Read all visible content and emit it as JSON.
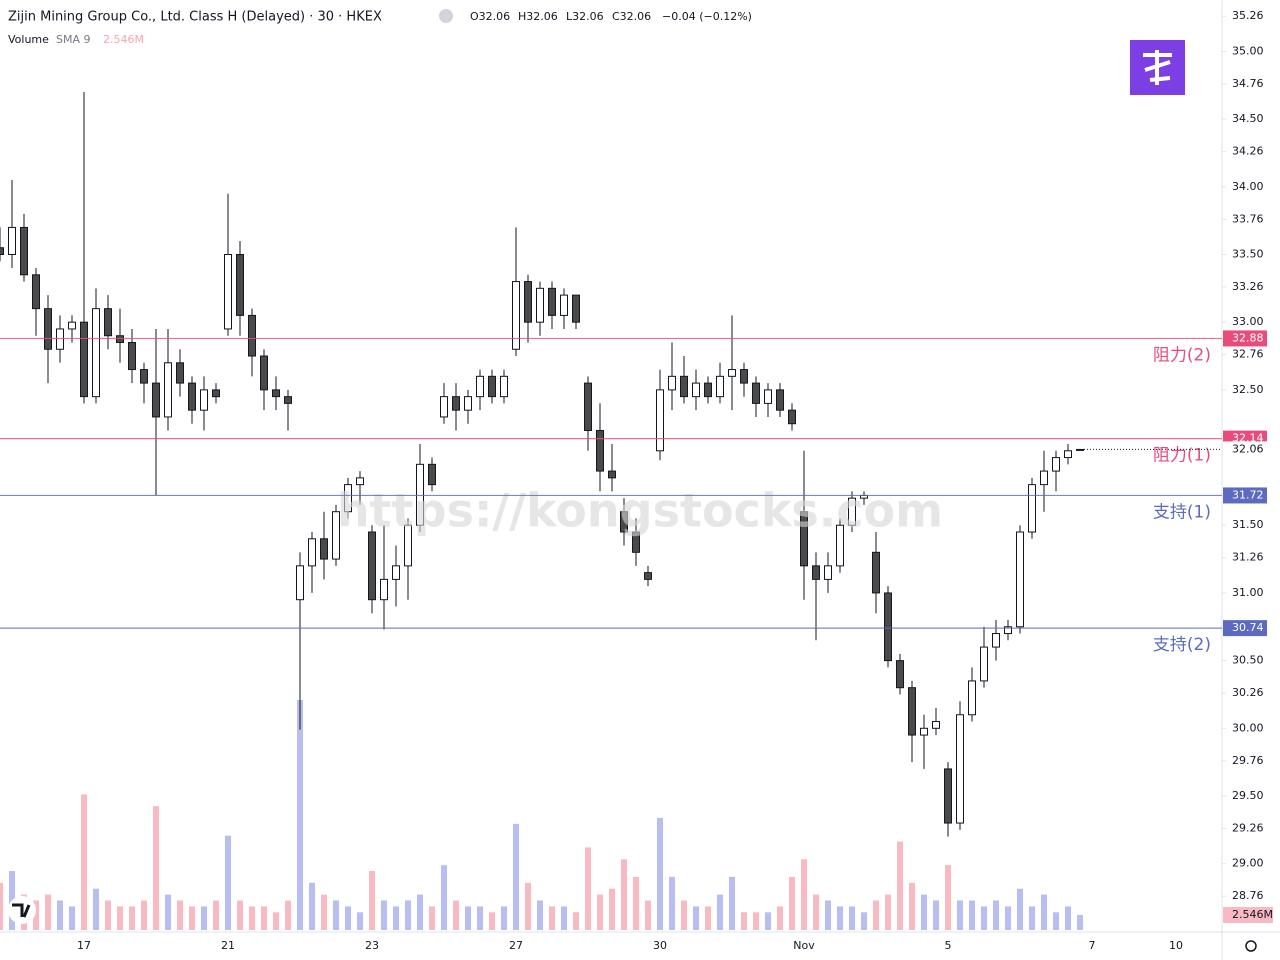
{
  "chart_data": {
    "type": "candlestick",
    "title": "Zijin Mining Group Co., Ltd. Class H (Delayed) · 30 · HKEX",
    "ohlc_text": [
      "O32.06",
      "H32.06",
      "L32.06",
      "C32.06",
      "−0.04 (−0.12%)"
    ],
    "volume_title": "Volume",
    "volume_sma": "SMA 9",
    "watermark": "https://kongstocks.com",
    "categories": [
      null,
      null,
      null,
      null,
      null,
      null,
      null,
      "17",
      null,
      null,
      null,
      null,
      null,
      null,
      null,
      null,
      null,
      null,
      null,
      "21",
      null,
      null,
      null,
      null,
      null,
      null,
      null,
      null,
      null,
      null,
      null,
      "23",
      null,
      null,
      null,
      null,
      null,
      null,
      null,
      null,
      null,
      null,
      null,
      "27",
      null,
      null,
      null,
      null,
      null,
      null,
      null,
      null,
      null,
      null,
      null,
      "30",
      null,
      null,
      null,
      null,
      null,
      null,
      null,
      null,
      null,
      null,
      null,
      "Nov",
      null,
      null,
      null,
      null,
      null,
      null,
      null,
      null,
      null,
      null,
      null,
      "5",
      null,
      null,
      null,
      null,
      null,
      null,
      null,
      null,
      null,
      null,
      null,
      "7",
      null,
      null,
      null,
      null,
      null,
      null,
      "10"
    ],
    "open": [
      33.55,
      33.5,
      33.7,
      33.35,
      33.1,
      32.8,
      32.95,
      33.0,
      32.45,
      33.1,
      32.9,
      32.85,
      32.65,
      32.55,
      32.3,
      32.7,
      32.55,
      32.35,
      32.5,
      32.95,
      33.5,
      33.05,
      32.75,
      32.5,
      32.45,
      30.95,
      31.2,
      31.4,
      31.25,
      31.6,
      31.8,
      31.45,
      30.95,
      31.1,
      31.2,
      31.5,
      31.95,
      32.3,
      32.45,
      32.35,
      32.45,
      32.6,
      32.45,
      32.8,
      33.3,
      33.0,
      33.25,
      33.05,
      33.2,
      32.55,
      32.2,
      31.9,
      31.6,
      31.45,
      31.15,
      32.05,
      32.5,
      32.6,
      32.45,
      32.55,
      32.45,
      32.6,
      32.65,
      32.55,
      32.4,
      32.5,
      32.35,
      31.6,
      31.2,
      31.1,
      31.2,
      31.5,
      31.7,
      31.3,
      31.0,
      30.5,
      30.3,
      29.95,
      30.0,
      29.7,
      29.3,
      30.1,
      30.35,
      30.6,
      30.7,
      30.75,
      31.45,
      31.8,
      31.9,
      32.0,
      32.06,
      null,
      null,
      null,
      null,
      null,
      null,
      null,
      null
    ],
    "high": [
      33.7,
      34.05,
      33.8,
      33.4,
      33.2,
      33.05,
      33.05,
      34.7,
      33.25,
      33.2,
      33.1,
      32.95,
      32.7,
      32.95,
      32.95,
      32.8,
      32.6,
      32.6,
      32.55,
      33.95,
      33.6,
      33.1,
      32.8,
      32.6,
      32.5,
      31.3,
      31.45,
      31.6,
      31.65,
      31.85,
      31.9,
      31.5,
      31.5,
      31.35,
      31.55,
      32.1,
      32.0,
      32.55,
      32.55,
      32.5,
      32.65,
      32.65,
      32.65,
      33.7,
      33.35,
      33.3,
      33.3,
      33.25,
      33.2,
      32.6,
      32.4,
      32.1,
      31.7,
      31.55,
      31.2,
      32.65,
      32.85,
      32.75,
      32.65,
      32.6,
      32.7,
      33.05,
      32.7,
      32.6,
      32.55,
      32.55,
      32.4,
      32.05,
      31.3,
      31.3,
      31.55,
      31.75,
      31.75,
      31.45,
      31.05,
      30.55,
      30.35,
      30.1,
      30.15,
      29.75,
      30.2,
      30.45,
      30.75,
      30.8,
      30.8,
      31.5,
      31.85,
      32.05,
      32.05,
      32.1,
      32.06,
      null,
      null,
      null,
      null,
      null,
      null,
      null,
      null
    ],
    "low": [
      33.45,
      33.4,
      33.3,
      32.9,
      32.55,
      32.7,
      32.85,
      32.4,
      32.4,
      32.8,
      32.7,
      32.55,
      32.4,
      31.72,
      32.2,
      32.45,
      32.25,
      32.2,
      32.4,
      32.9,
      32.9,
      32.6,
      32.35,
      32.35,
      32.2,
      29.99,
      31.0,
      31.1,
      31.2,
      31.55,
      31.65,
      30.85,
      30.73,
      30.9,
      30.95,
      31.45,
      31.75,
      32.25,
      32.2,
      32.25,
      32.35,
      32.4,
      32.4,
      32.75,
      32.85,
      32.9,
      32.95,
      32.95,
      32.95,
      32.05,
      31.75,
      31.75,
      31.35,
      31.2,
      31.05,
      31.98,
      32.35,
      32.4,
      32.35,
      32.4,
      32.4,
      32.35,
      32.45,
      32.3,
      32.3,
      32.3,
      32.2,
      30.95,
      30.65,
      31.0,
      31.15,
      31.45,
      31.65,
      30.85,
      30.45,
      30.25,
      29.75,
      29.7,
      29.95,
      29.2,
      29.25,
      30.05,
      30.3,
      30.5,
      30.65,
      30.7,
      31.4,
      31.6,
      31.75,
      31.95,
      32.06,
      null,
      null,
      null,
      null,
      null,
      null,
      null,
      null
    ],
    "close": [
      33.5,
      33.7,
      33.35,
      33.1,
      32.8,
      32.95,
      33.0,
      32.45,
      33.1,
      32.9,
      32.85,
      32.65,
      32.55,
      32.3,
      32.7,
      32.55,
      32.35,
      32.5,
      32.45,
      33.5,
      33.05,
      32.75,
      32.5,
      32.45,
      32.4,
      31.2,
      31.4,
      31.25,
      31.6,
      31.8,
      31.85,
      30.95,
      31.1,
      31.2,
      31.5,
      31.95,
      31.8,
      32.45,
      32.35,
      32.45,
      32.6,
      32.45,
      32.6,
      33.3,
      33.0,
      33.25,
      33.05,
      33.2,
      33.0,
      32.2,
      31.9,
      31.85,
      31.45,
      31.3,
      31.1,
      32.5,
      32.6,
      32.45,
      32.55,
      32.45,
      32.6,
      32.65,
      32.55,
      32.4,
      32.5,
      32.35,
      32.25,
      31.2,
      31.1,
      31.2,
      31.5,
      31.7,
      31.72,
      31.0,
      30.5,
      30.3,
      29.95,
      30.0,
      30.05,
      29.3,
      30.1,
      30.35,
      30.6,
      30.7,
      30.75,
      31.45,
      31.8,
      31.9,
      32.0,
      32.05,
      32.06,
      null,
      null,
      null,
      null,
      null,
      null,
      null,
      null
    ],
    "volume": [
      8,
      10,
      6,
      5,
      6,
      5,
      4,
      23,
      7,
      5,
      4,
      4,
      5,
      21,
      6,
      5,
      4,
      4,
      5,
      16,
      5,
      4,
      4,
      3,
      5,
      39,
      8,
      6,
      5,
      4,
      3,
      10,
      5,
      4,
      5,
      6,
      4,
      11,
      5,
      4,
      4,
      3,
      4,
      18,
      8,
      5,
      4,
      4,
      3,
      14,
      6,
      7,
      12,
      9,
      5,
      19,
      9,
      5,
      4,
      4,
      6,
      9,
      3,
      3,
      3,
      4,
      9,
      12,
      6,
      5,
      4,
      4,
      3,
      5,
      6,
      15,
      8,
      6,
      5,
      11,
      5,
      5,
      4,
      5,
      4,
      7,
      4,
      6,
      3,
      4,
      2.546,
      null,
      null,
      null,
      null,
      null,
      null,
      null,
      null
    ],
    "volume_badge": {
      "value": 2.546,
      "label": "2.546M"
    },
    "up_color": "#ffffff",
    "down_color": "#4a4a4a",
    "wick_color": "#131722",
    "volume_up_color": "#b8bdf2",
    "volume_down_color": "#f8b9c2",
    "ylim": [
      28.51,
      35.38
    ],
    "yticks": [
      35.26,
      {
        "value": 35,
        "label": "35.00"
      },
      34.76,
      {
        "value": 34.5,
        "label": "34.50"
      },
      34.26,
      {
        "value": 34,
        "label": "34.00"
      },
      33.76,
      {
        "value": 33.5,
        "label": "33.50"
      },
      33.26,
      {
        "value": 33,
        "label": "33.00"
      },
      32.76,
      {
        "value": 32.5,
        "label": "32.50"
      },
      {
        "value": 31.5,
        "label": "31.50"
      },
      31.26,
      {
        "value": 31,
        "label": "31.00"
      },
      {
        "value": 30.5,
        "label": "30.50"
      },
      30.26,
      {
        "value": 30,
        "label": "30.00"
      },
      29.76,
      {
        "value": 29.5,
        "label": "29.50"
      },
      29.26,
      {
        "value": 29,
        "label": "29.00"
      },
      28.76
    ],
    "grid": false,
    "levels": [
      {
        "value": 32.88,
        "label": "阻力(2)",
        "color": "#e84c7a"
      },
      {
        "value": 32.14,
        "label": "阻力(1)",
        "color": "#e84c7a"
      },
      {
        "value": 31.72,
        "label": "支持(1)",
        "color": "#5c6bc0"
      },
      {
        "value": 30.74,
        "label": "支持(2)",
        "color": "#5c6bc0"
      }
    ],
    "last_price": 32.06
  }
}
